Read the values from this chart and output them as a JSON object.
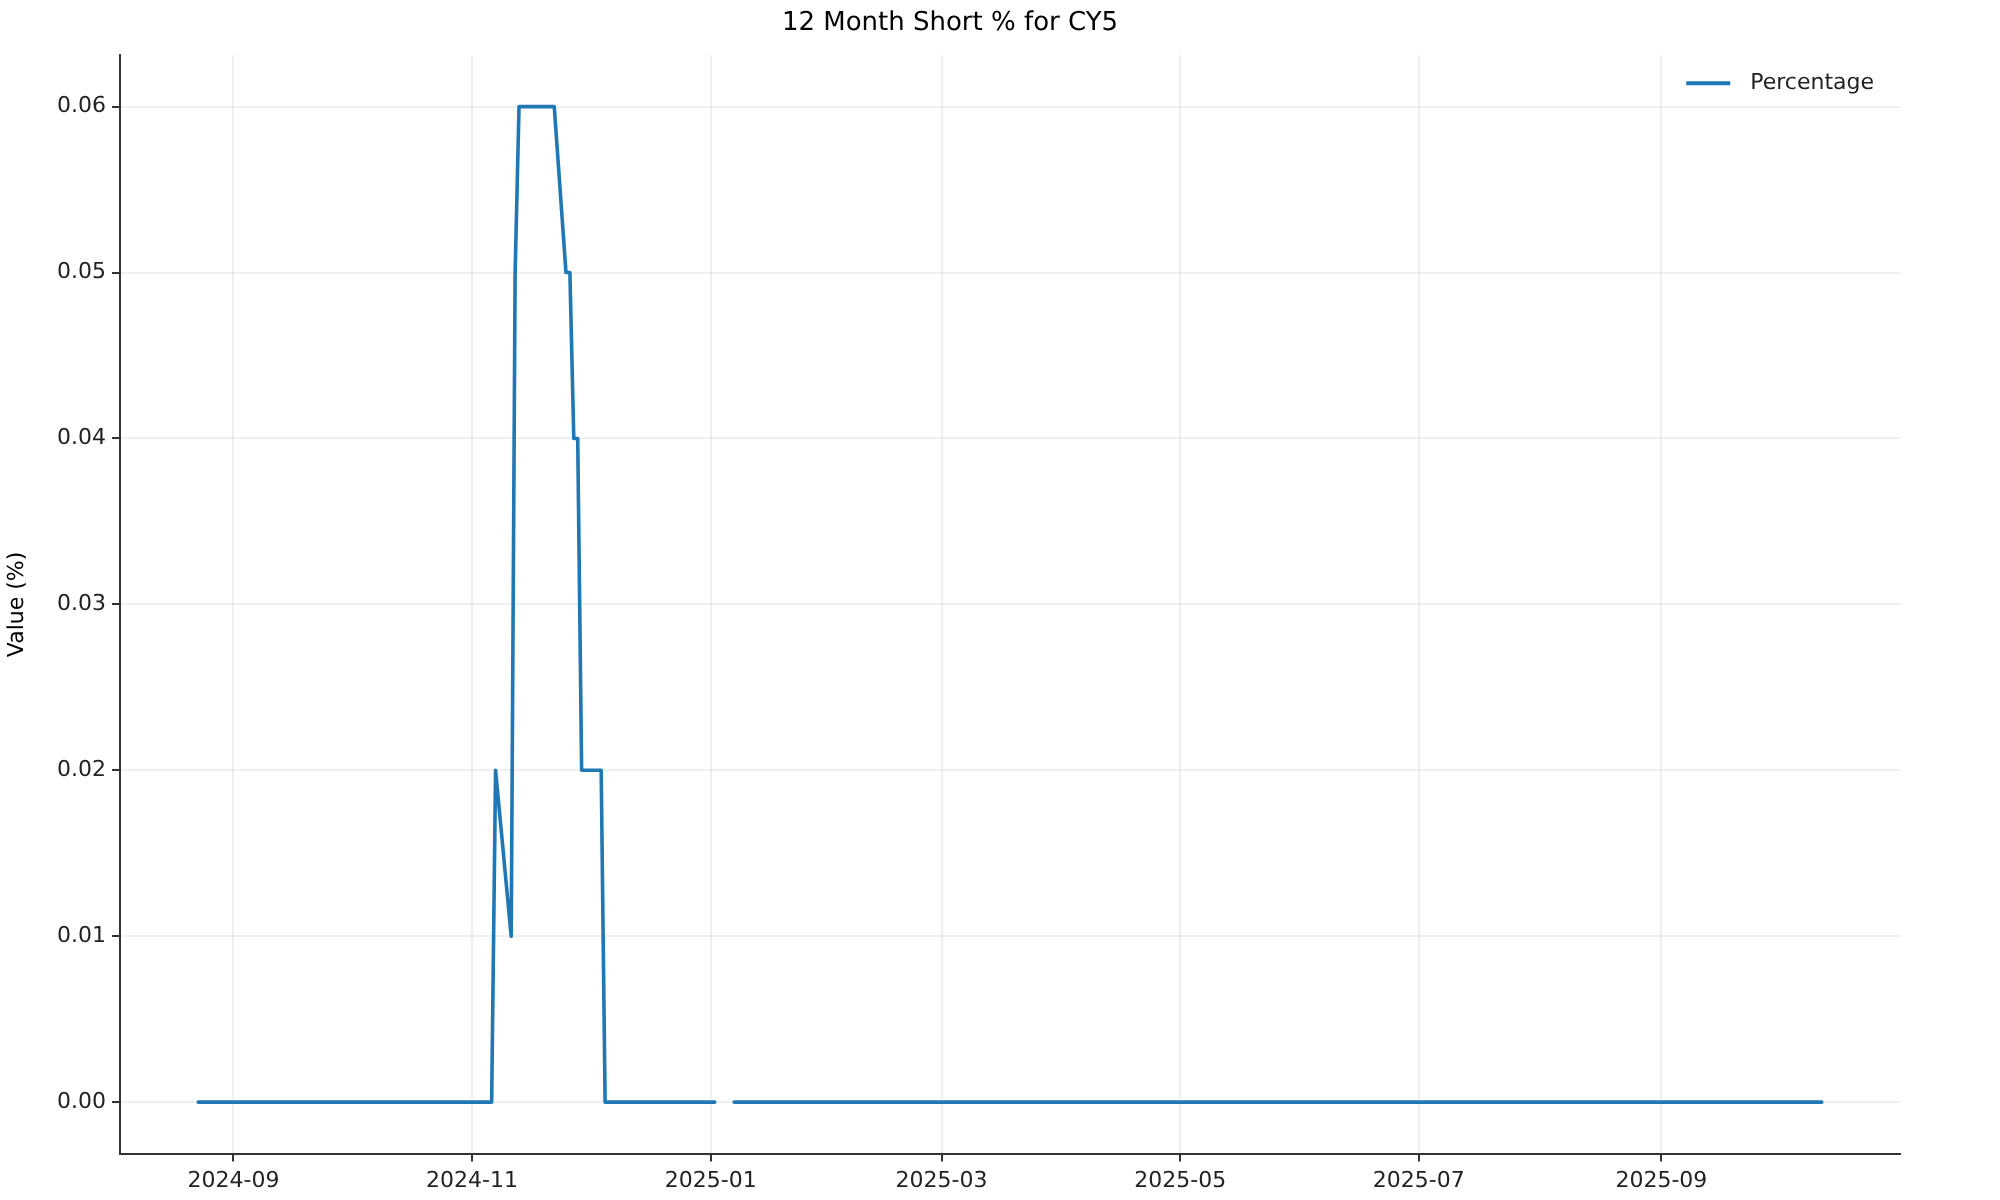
{
  "chart_data": {
    "type": "line",
    "title": "12 Month Short % for CY5",
    "ylabel": "Value (%)",
    "x": [
      "2024-08-23",
      "2024-11-06",
      "2024-11-07",
      "2024-11-11",
      "2024-11-12",
      "2024-11-13",
      "2024-11-22",
      "2024-11-25",
      "2024-11-26",
      "2024-11-27",
      "2024-11-28",
      "2024-11-29",
      "2024-12-04",
      "2024-12-05",
      "2025-01-02",
      "2025-01-04",
      "2025-01-07",
      "2025-10-12"
    ],
    "series": [
      {
        "name": "Percentage",
        "color": "#1f77b4",
        "values": [
          0,
          0,
          0.02,
          0.01,
          0.05,
          0.06,
          0.06,
          0.05,
          0.05,
          0.04,
          0.04,
          0.02,
          0.02,
          0,
          0,
          null,
          0,
          0
        ]
      }
    ],
    "xlim": [
      "2024-08-03",
      "2025-11-01"
    ],
    "xticks": [
      {
        "value": "2024-09-01",
        "label": "2024-09"
      },
      {
        "value": "2024-11-01",
        "label": "2024-11"
      },
      {
        "value": "2025-01-01",
        "label": "2025-01"
      },
      {
        "value": "2025-03-01",
        "label": "2025-03"
      },
      {
        "value": "2025-05-01",
        "label": "2025-05"
      },
      {
        "value": "2025-07-01",
        "label": "2025-07"
      },
      {
        "value": "2025-09-01",
        "label": "2025-09"
      }
    ],
    "ylim": [
      -0.0031,
      0.0631
    ],
    "yticks": [
      {
        "value": 0,
        "label": "0.00"
      },
      {
        "value": 0.01,
        "label": "0.01"
      },
      {
        "value": 0.02,
        "label": "0.02"
      },
      {
        "value": 0.03,
        "label": "0.03"
      },
      {
        "value": 0.04,
        "label": "0.04"
      },
      {
        "value": 0.05,
        "label": "0.05"
      },
      {
        "value": 0.06,
        "label": "0.06"
      }
    ],
    "grid": true,
    "legend": "top right",
    "marker": "none",
    "line_style": "solid"
  }
}
